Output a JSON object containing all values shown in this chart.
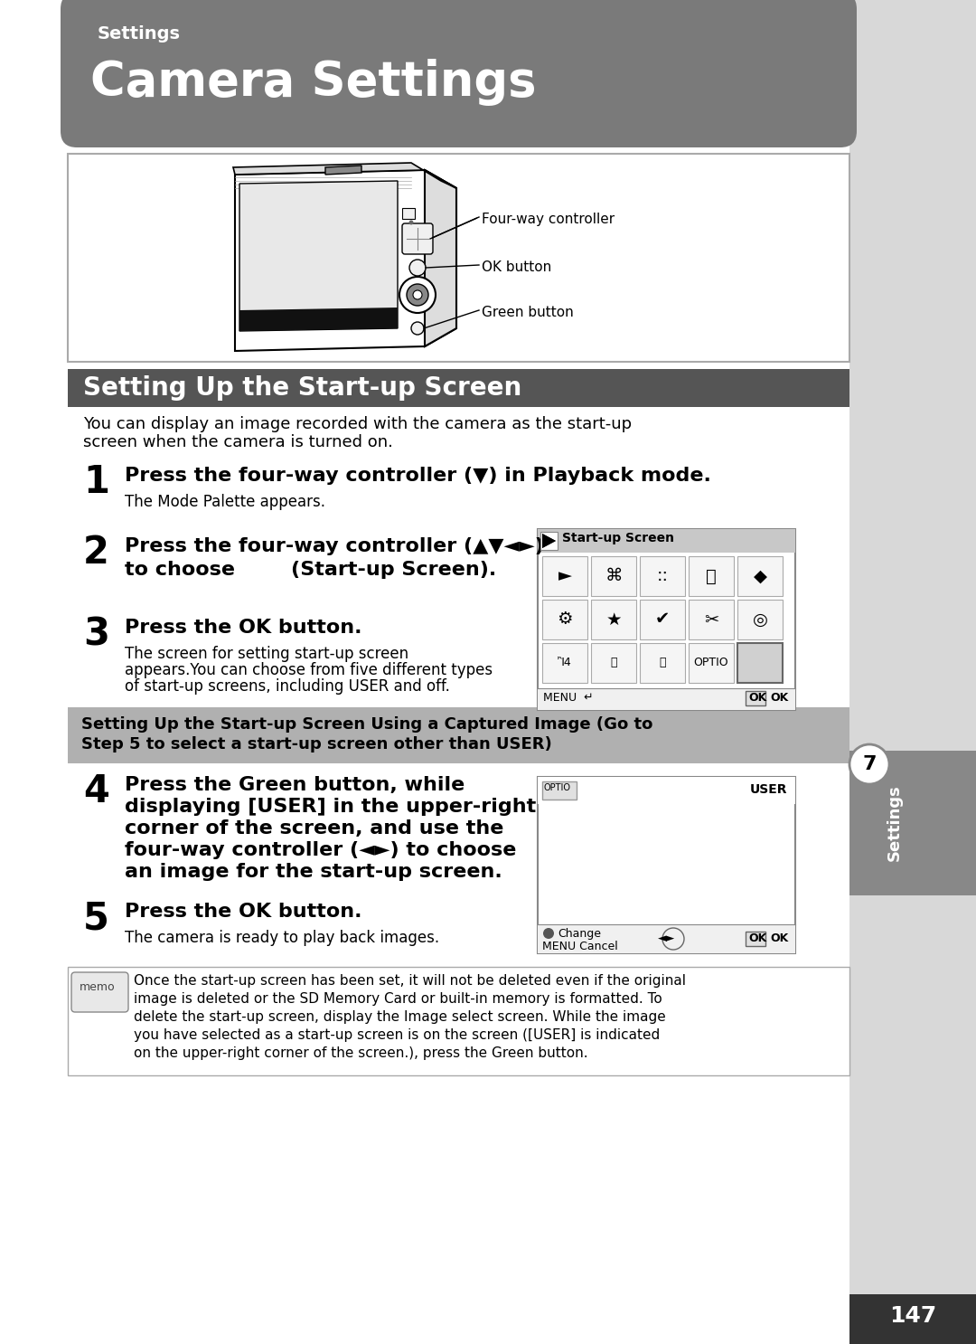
{
  "page_bg": "#e0e0e0",
  "content_bg": "#ffffff",
  "header_bg": "#7a7a7a",
  "header_text_small": "Settings",
  "header_text_large": "Camera Settings",
  "section_header_bg": "#555555",
  "section_header_text": "Setting Up the Start-up Screen",
  "gray_box_bg": "#b0b0b0",
  "gray_box_text_line1": "Setting Up the Start-up Screen Using a Captured Image (Go to",
  "gray_box_text_line2": "Step 5 to select a start-up screen other than USER)",
  "right_tab_bg": "#c0c0c0",
  "right_tab_text": "Settings",
  "page_number_bg": "#333333",
  "page_number": "147",
  "intro_text_line1": "You can display an image recorded with the camera as the start-up",
  "intro_text_line2": "screen when the camera is turned on.",
  "step1_bold": "Press the four-way controller (▼) in Playback mode.",
  "step1_sub": "The Mode Palette appears.",
  "step2_bold_line1": "Press the four-way controller (▲▼◄►)",
  "step2_bold_line2": "to choose        (Start-up Screen).",
  "step3_bold": "Press the OK button.",
  "step3_sub_line1": "The screen for setting start-up screen",
  "step3_sub_line2": "appears.You can choose from five different types",
  "step3_sub_line3": "of start-up screens, including USER and off.",
  "step4_bold_line1": "Press the Green button, while",
  "step4_bold_line2": "displaying [USER] in the upper-right",
  "step4_bold_line3": "corner of the screen, and use the",
  "step4_bold_line4": "four-way controller (◄►) to choose",
  "step4_bold_line5": "an image for the start-up screen.",
  "step5_bold": "Press the OK button.",
  "step5_sub": "The camera is ready to play back images.",
  "memo_text_line1": "Once the start-up screen has been set, it will not be deleted even if the original",
  "memo_text_line2": "image is deleted or the SD Memory Card or built-in memory is formatted. To",
  "memo_text_line3": "delete the start-up screen, display the Image select screen. While the image",
  "memo_text_line4": "you have selected as a start-up screen is on the screen ([USER] is indicated",
  "memo_text_line5": "on the upper-right corner of the screen.), press the Green button.",
  "ss1_title": "Start-up Screen",
  "ss1_menu_text": "MENU",
  "ss1_ok_text": "OK  OK",
  "ss2_user_text": "USER",
  "ss2_change_text": "●Change",
  "ss2_cancel_text": "MENUCancel",
  "ss2_ok_text": "OK OK"
}
